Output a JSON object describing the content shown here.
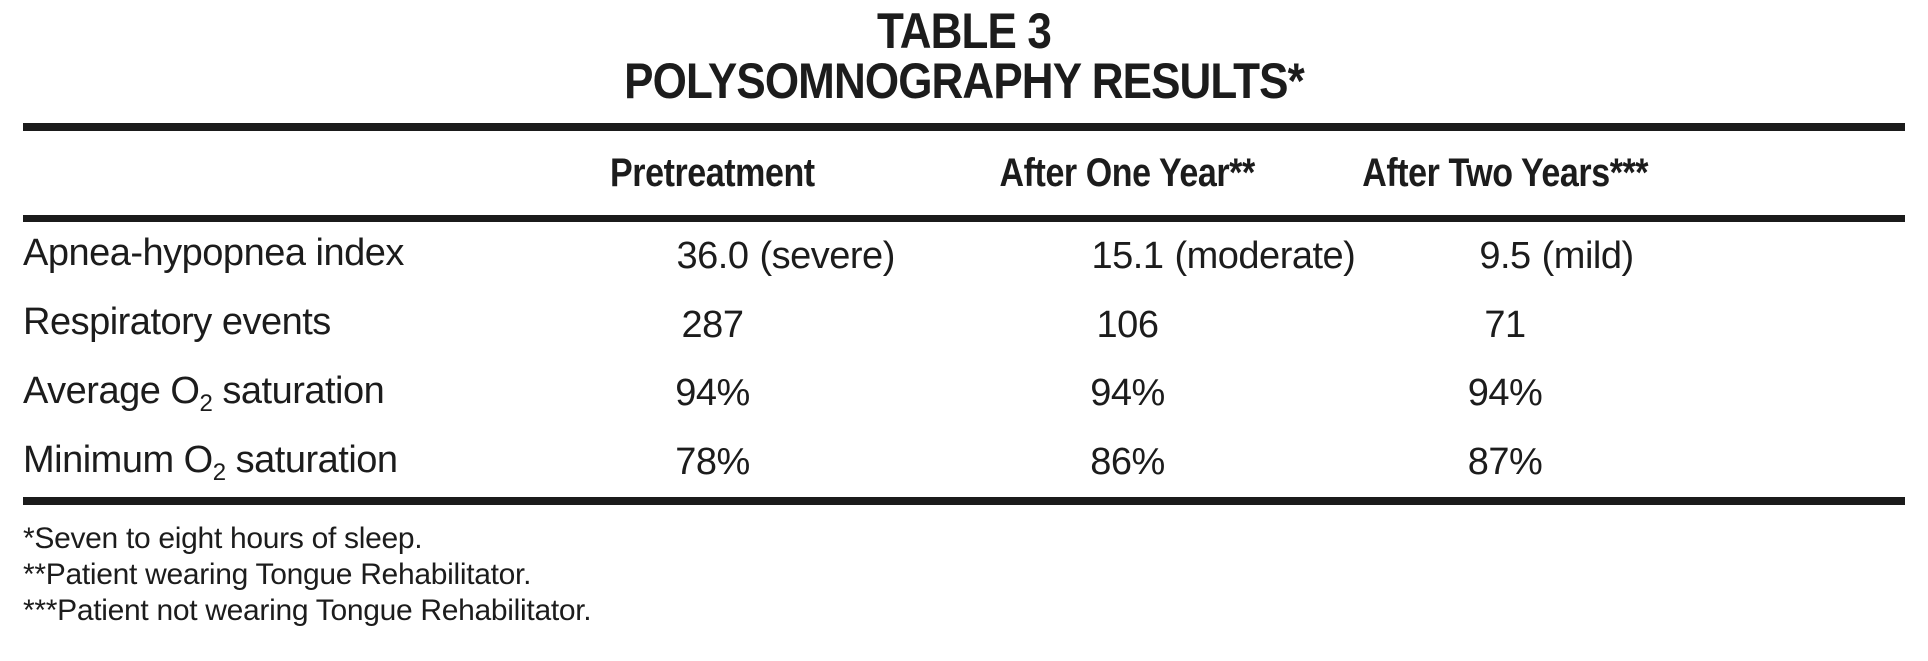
{
  "title": {
    "line1": "TABLE 3",
    "line2": "POLYSOMNOGRAPHY RESULTS*"
  },
  "columns": [
    "Pretreatment",
    "After One Year**",
    "After Two Years***"
  ],
  "rows": [
    {
      "label": {
        "pre": "Apnea-hypopnea index",
        "sub": "",
        "post": ""
      },
      "values": [
        {
          "num": "36.0",
          "qual": "(severe)"
        },
        {
          "num": "15.1",
          "qual": "(moderate)"
        },
        {
          "num": "9.5",
          "qual": "(mild)"
        }
      ]
    },
    {
      "label": {
        "pre": "Respiratory events",
        "sub": "",
        "post": ""
      },
      "values": [
        {
          "num": "287",
          "qual": ""
        },
        {
          "num": "106",
          "qual": ""
        },
        {
          "num": "71",
          "qual": ""
        }
      ]
    },
    {
      "label": {
        "pre": "Average O",
        "sub": "2",
        "post": " saturation"
      },
      "values": [
        {
          "num": "94%",
          "qual": ""
        },
        {
          "num": "94%",
          "qual": ""
        },
        {
          "num": "94%",
          "qual": ""
        }
      ]
    },
    {
      "label": {
        "pre": "Minimum O",
        "sub": "2",
        "post": " saturation"
      },
      "values": [
        {
          "num": "78%",
          "qual": ""
        },
        {
          "num": "86%",
          "qual": ""
        },
        {
          "num": "87%",
          "qual": ""
        }
      ]
    }
  ],
  "footnotes": [
    "*Seven to eight hours of sleep.",
    "**Patient wearing Tongue Rehabilitator.",
    "***Patient not wearing Tongue Rehabilitator."
  ],
  "colors": {
    "text": "#1c1c1c",
    "rule": "#1b1b1b",
    "background": "#ffffff"
  }
}
